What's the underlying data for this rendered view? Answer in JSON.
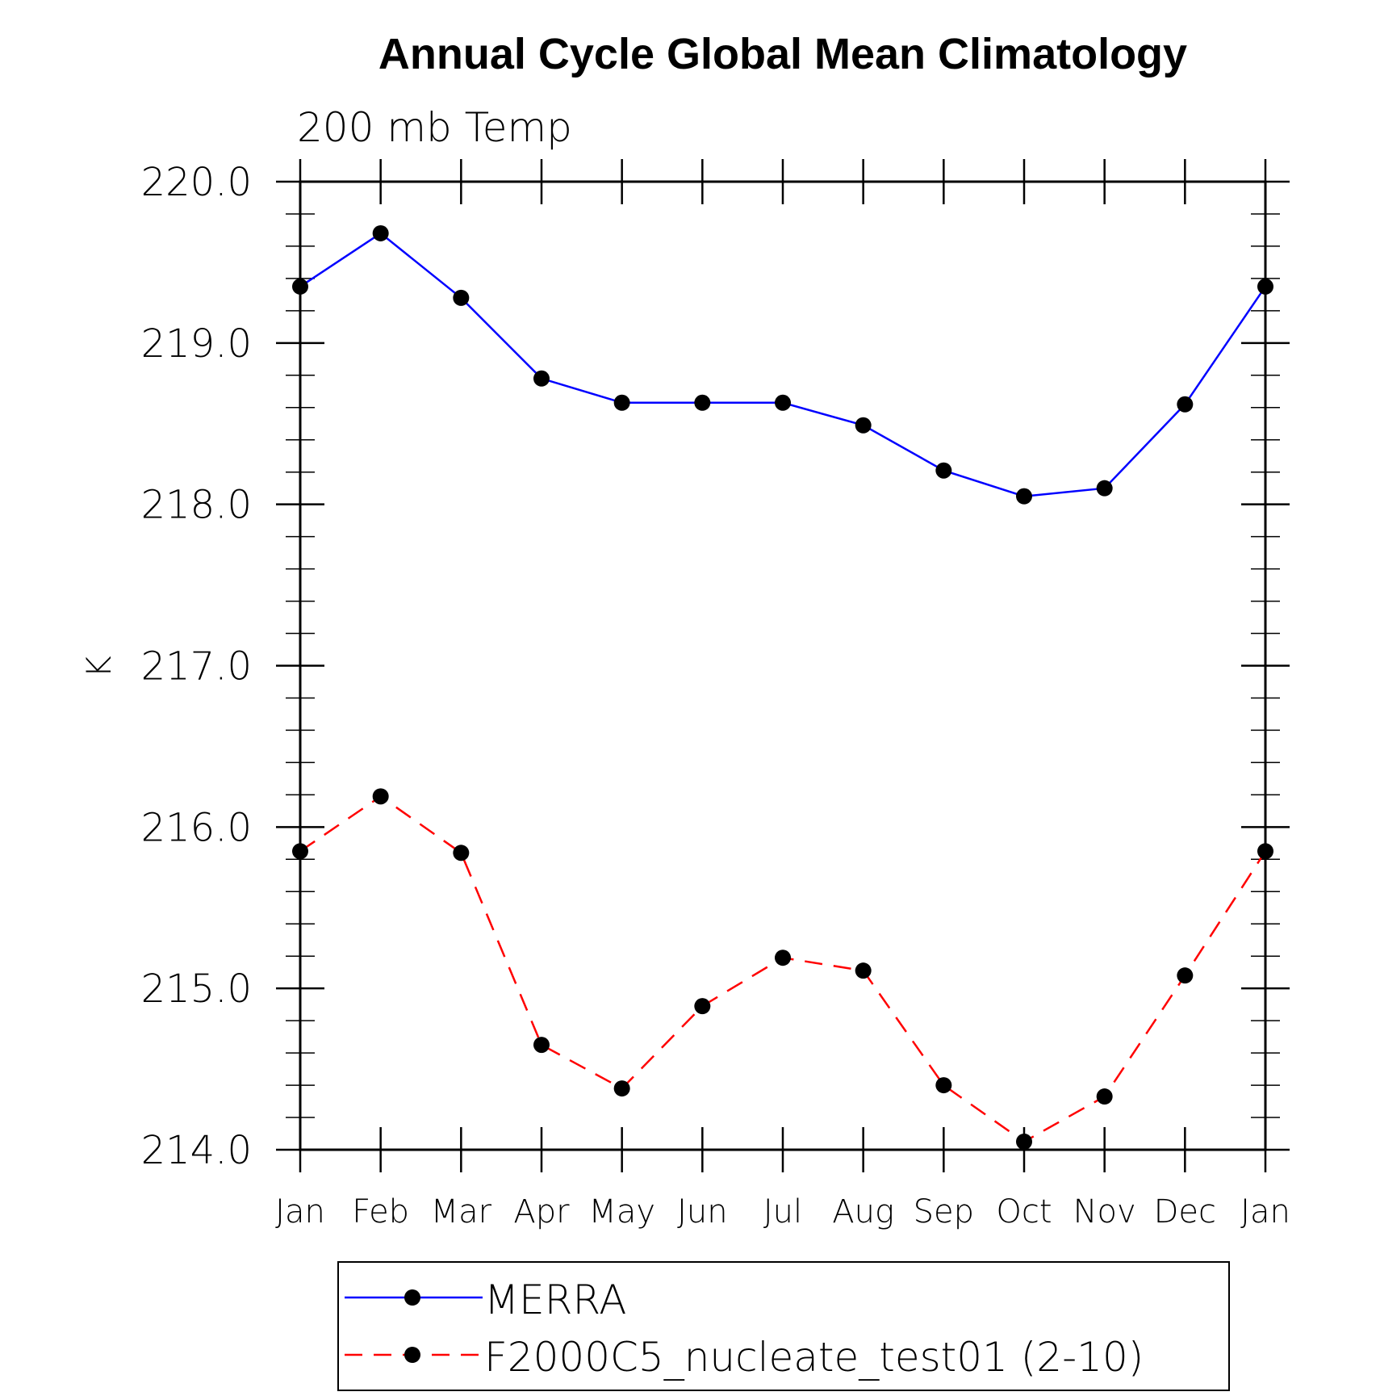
{
  "chart_data": {
    "type": "line",
    "title": "Annual Cycle Global Mean Climatology",
    "subtitle": "200 mb Temp",
    "xlabel": "",
    "ylabel": "K",
    "categories": [
      "Jan",
      "Feb",
      "Mar",
      "Apr",
      "May",
      "Jun",
      "Jul",
      "Aug",
      "Sep",
      "Oct",
      "Nov",
      "Dec",
      "Jan"
    ],
    "ylim": [
      214.0,
      220.0
    ],
    "yticks": [
      "214.0",
      "215.0",
      "216.0",
      "217.0",
      "218.0",
      "219.0",
      "220.0"
    ],
    "grid": false,
    "legend_position": "bottom",
    "series": [
      {
        "name": "MERRA",
        "color": "#0000ff",
        "dash": "solid",
        "marker": "filled-circle",
        "values": [
          219.35,
          219.68,
          219.28,
          218.78,
          218.63,
          218.63,
          218.63,
          218.49,
          218.21,
          218.05,
          218.1,
          218.62,
          219.35
        ]
      },
      {
        "name": "F2000C5_nucleate_test01 (2-10)",
        "color": "#ff0000",
        "dash": "dashed",
        "marker": "filled-circle",
        "values": [
          215.85,
          216.19,
          215.84,
          214.65,
          214.38,
          214.89,
          215.19,
          215.11,
          214.4,
          214.05,
          214.33,
          215.08,
          215.85
        ]
      }
    ]
  }
}
